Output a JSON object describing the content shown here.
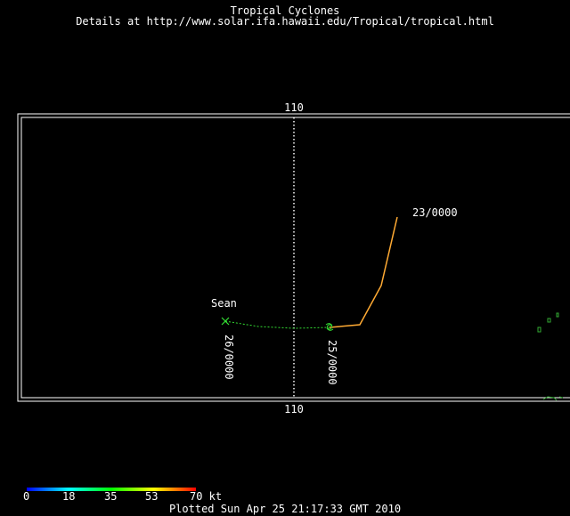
{
  "header": {
    "title": "Tropical Cyclones",
    "details": "Details at http://www.solar.ifa.hawaii.edu/Tropical/tropical.html"
  },
  "map": {
    "longitude_label_top": "110",
    "longitude_label_bottom": "110",
    "storm": {
      "name": "Sean",
      "time_labels": [
        "23/0000",
        "25/0000",
        "26/0000"
      ]
    }
  },
  "scale": {
    "ticks": [
      "0",
      "18",
      "35",
      "53",
      "70 kt"
    ],
    "colors": [
      "#0000ff",
      "#00ffff",
      "#00ff00",
      "#ffff00",
      "#ff0000"
    ]
  },
  "footer": {
    "plotted": "Plotted Sun Apr 25 21:17:33 GMT 2010"
  },
  "colors": {
    "background": "#000000",
    "frame": "#ffffff",
    "track_weak": "#33dd33",
    "track_strong": "#ffaa33",
    "land": "#33aa33"
  }
}
